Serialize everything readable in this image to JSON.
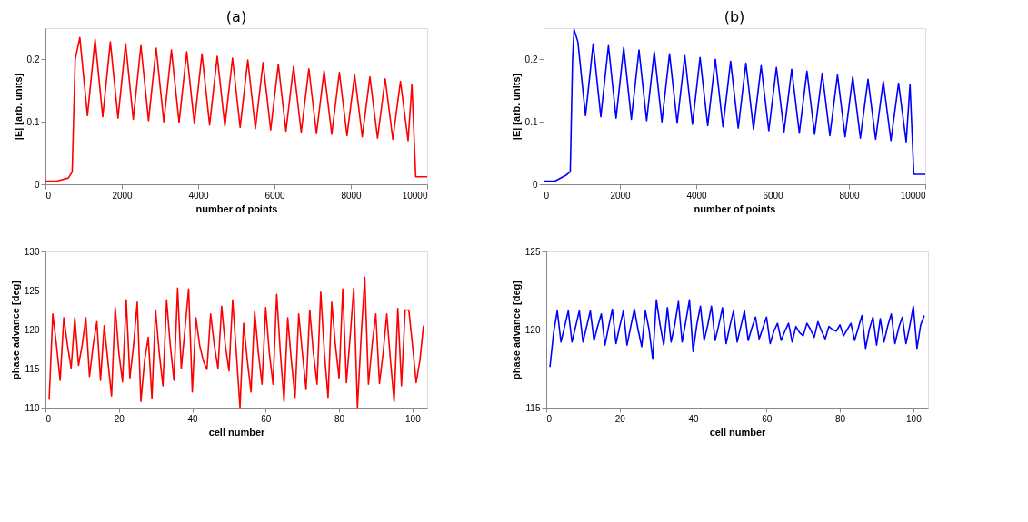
{
  "chart_data": [
    {
      "type": "line",
      "title": "(a)",
      "xlabel": "number of points",
      "ylabel": "|E| [arb. units]",
      "xlim": [
        0,
        10000
      ],
      "xticks": [
        0,
        2000,
        4000,
        6000,
        8000,
        10000
      ],
      "ylim": [
        0,
        0.25
      ],
      "yticks": [
        0,
        0.1,
        0.2
      ],
      "grid": false,
      "x": [
        0,
        300,
        600,
        700,
        780,
        900,
        1100,
        1300,
        1500,
        1700,
        1900,
        2100,
        2300,
        2500,
        2700,
        2900,
        3100,
        3300,
        3500,
        3700,
        3900,
        4100,
        4300,
        4500,
        4700,
        4900,
        5100,
        5300,
        5500,
        5700,
        5900,
        6100,
        6300,
        6500,
        6700,
        6900,
        7100,
        7300,
        7500,
        7700,
        7900,
        8100,
        8300,
        8500,
        8700,
        8900,
        9100,
        9300,
        9500,
        9600,
        9700,
        10000
      ],
      "series": [
        {
          "color": "#ff0000",
          "values": [
            0.005,
            0.005,
            0.01,
            0.02,
            0.2,
            0.235,
            0.11,
            0.232,
            0.108,
            0.228,
            0.106,
            0.225,
            0.104,
            0.222,
            0.102,
            0.218,
            0.1,
            0.215,
            0.099,
            0.212,
            0.097,
            0.209,
            0.095,
            0.205,
            0.093,
            0.202,
            0.091,
            0.199,
            0.089,
            0.195,
            0.087,
            0.192,
            0.085,
            0.189,
            0.083,
            0.185,
            0.081,
            0.182,
            0.08,
            0.179,
            0.078,
            0.175,
            0.076,
            0.172,
            0.074,
            0.169,
            0.072,
            0.165,
            0.07,
            0.16,
            0.012,
            0.012
          ]
        }
      ]
    },
    {
      "type": "line",
      "title": "(b)",
      "xlabel": "number of points",
      "ylabel": "|E| [arb. units]",
      "xlim": [
        0,
        10000
      ],
      "xticks": [
        0,
        2000,
        4000,
        6000,
        8000,
        10000
      ],
      "ylim": [
        0,
        0.25
      ],
      "yticks": [
        0,
        0.1,
        0.2
      ],
      "grid": false,
      "x": [
        0,
        300,
        600,
        700,
        760,
        800,
        900,
        1100,
        1300,
        1500,
        1700,
        1900,
        2100,
        2300,
        2500,
        2700,
        2900,
        3100,
        3300,
        3500,
        3700,
        3900,
        4100,
        4300,
        4500,
        4700,
        4900,
        5100,
        5300,
        5500,
        5700,
        5900,
        6100,
        6300,
        6500,
        6700,
        6900,
        7100,
        7300,
        7500,
        7700,
        7900,
        8100,
        8300,
        8500,
        8700,
        8900,
        9100,
        9300,
        9500,
        9600,
        9700,
        10000
      ],
      "series": [
        {
          "color": "#0000ff",
          "values": [
            0.005,
            0.005,
            0.015,
            0.02,
            0.2,
            0.248,
            0.228,
            0.11,
            0.225,
            0.108,
            0.222,
            0.106,
            0.219,
            0.104,
            0.215,
            0.102,
            0.212,
            0.1,
            0.209,
            0.098,
            0.206,
            0.096,
            0.203,
            0.094,
            0.2,
            0.092,
            0.197,
            0.09,
            0.194,
            0.088,
            0.19,
            0.086,
            0.187,
            0.084,
            0.184,
            0.082,
            0.181,
            0.08,
            0.178,
            0.078,
            0.175,
            0.076,
            0.172,
            0.074,
            0.168,
            0.072,
            0.165,
            0.07,
            0.162,
            0.068,
            0.16,
            0.016,
            0.016
          ]
        }
      ]
    },
    {
      "type": "line",
      "xlabel": "cell number",
      "ylabel": "phase advance [deg]",
      "xlim": [
        0,
        104
      ],
      "xticks": [
        0,
        20,
        40,
        60,
        80,
        100
      ],
      "ylim": [
        110,
        130
      ],
      "yticks": [
        110,
        115,
        120,
        125,
        130
      ],
      "grid": false,
      "x": [
        1,
        2,
        3,
        4,
        5,
        6,
        7,
        8,
        9,
        10,
        11,
        12,
        13,
        14,
        15,
        16,
        17,
        18,
        19,
        20,
        21,
        22,
        23,
        24,
        25,
        26,
        27,
        28,
        29,
        30,
        31,
        32,
        33,
        34,
        35,
        36,
        37,
        38,
        39,
        40,
        41,
        42,
        43,
        44,
        45,
        46,
        47,
        48,
        49,
        50,
        51,
        52,
        53,
        54,
        55,
        56,
        57,
        58,
        59,
        60,
        61,
        62,
        63,
        64,
        65,
        66,
        67,
        68,
        69,
        70,
        71,
        72,
        73,
        74,
        75,
        76,
        77,
        78,
        79,
        80,
        81,
        82,
        83,
        84,
        85,
        86,
        87,
        88,
        89,
        90,
        91,
        92,
        93,
        94,
        95,
        96,
        97,
        98,
        99,
        100,
        101,
        102,
        103
      ],
      "series": [
        {
          "color": "#ff0000",
          "values": [
            111,
            122,
            118,
            113.5,
            121.5,
            118,
            115,
            121.5,
            115.4,
            118,
            121.5,
            114,
            118,
            121,
            113.5,
            120.5,
            116,
            111.5,
            122.8,
            117,
            113.3,
            123.8,
            113.8,
            118,
            123.5,
            110.8,
            116,
            119,
            111.2,
            122.5,
            117,
            112.8,
            123.8,
            118,
            113.5,
            125.3,
            115,
            120,
            125.2,
            112,
            121.5,
            118,
            116,
            114.9,
            122,
            118,
            115,
            123,
            118,
            114.7,
            123.8,
            117,
            110,
            120.8,
            116,
            112,
            122.3,
            117,
            113,
            122.8,
            117,
            113,
            124.5,
            117,
            110.8,
            121.5,
            116,
            111.3,
            122,
            117,
            112.3,
            122.5,
            117,
            113,
            124.8,
            117,
            111.3,
            123.5,
            118,
            113.8,
            125.2,
            113.2,
            119,
            125.3,
            110,
            119,
            126.7,
            113,
            118,
            122,
            113.1,
            117,
            122,
            116,
            110.8,
            122.7,
            112.8,
            122.5,
            122.5,
            118,
            113.2,
            116,
            120.5
          ]
        }
      ]
    },
    {
      "type": "line",
      "xlabel": "cell number",
      "ylabel": "phase advance [deg]",
      "xlim": [
        0,
        104
      ],
      "xticks": [
        0,
        20,
        40,
        60,
        80,
        100
      ],
      "ylim": [
        115,
        125
      ],
      "yticks": [
        115,
        120,
        125
      ],
      "grid": false,
      "x": [
        1,
        2,
        3,
        4,
        5,
        6,
        7,
        8,
        9,
        10,
        11,
        12,
        13,
        14,
        15,
        16,
        17,
        18,
        19,
        20,
        21,
        22,
        23,
        24,
        25,
        26,
        27,
        28,
        29,
        30,
        31,
        32,
        33,
        34,
        35,
        36,
        37,
        38,
        39,
        40,
        41,
        42,
        43,
        44,
        45,
        46,
        47,
        48,
        49,
        50,
        51,
        52,
        53,
        54,
        55,
        56,
        57,
        58,
        59,
        60,
        61,
        62,
        63,
        64,
        65,
        66,
        67,
        68,
        69,
        70,
        71,
        72,
        73,
        74,
        75,
        76,
        77,
        78,
        79,
        80,
        81,
        82,
        83,
        84,
        85,
        86,
        87,
        88,
        89,
        90,
        91,
        92,
        93,
        94,
        95,
        96,
        97,
        98,
        99,
        100,
        101,
        102,
        103
      ],
      "series": [
        {
          "color": "#0000ff",
          "values": [
            117.6,
            119.8,
            121.2,
            119.2,
            120.2,
            121.2,
            119.2,
            120.2,
            121.2,
            119.2,
            120.2,
            121.2,
            119.3,
            120.2,
            121,
            119,
            120.2,
            121.3,
            119.1,
            120.2,
            121.2,
            119,
            120.2,
            121.3,
            120,
            118.9,
            121.2,
            120,
            118.1,
            121.9,
            120.3,
            119,
            121.4,
            119.2,
            120.3,
            121.8,
            119.2,
            120.5,
            121.9,
            118.6,
            120.3,
            121.5,
            119.3,
            120.3,
            121.5,
            119.3,
            120.3,
            121.4,
            119.1,
            120.2,
            121.2,
            119.2,
            120.2,
            121.2,
            119.3,
            120.1,
            120.8,
            119.4,
            120.1,
            120.8,
            119.1,
            119.9,
            120.4,
            119.3,
            119.9,
            120.4,
            119.2,
            120.2,
            119.8,
            119.6,
            120.4,
            120,
            119.5,
            120.5,
            119.9,
            119.4,
            120.2,
            120,
            119.9,
            120.3,
            119.6,
            120,
            120.4,
            119.3,
            120.1,
            120.9,
            118.8,
            120,
            120.8,
            119,
            120.7,
            119.2,
            120.2,
            121,
            119.1,
            120.1,
            120.8,
            119.1,
            120.2,
            121.5,
            118.8,
            120.3,
            120.9
          ]
        }
      ]
    }
  ]
}
